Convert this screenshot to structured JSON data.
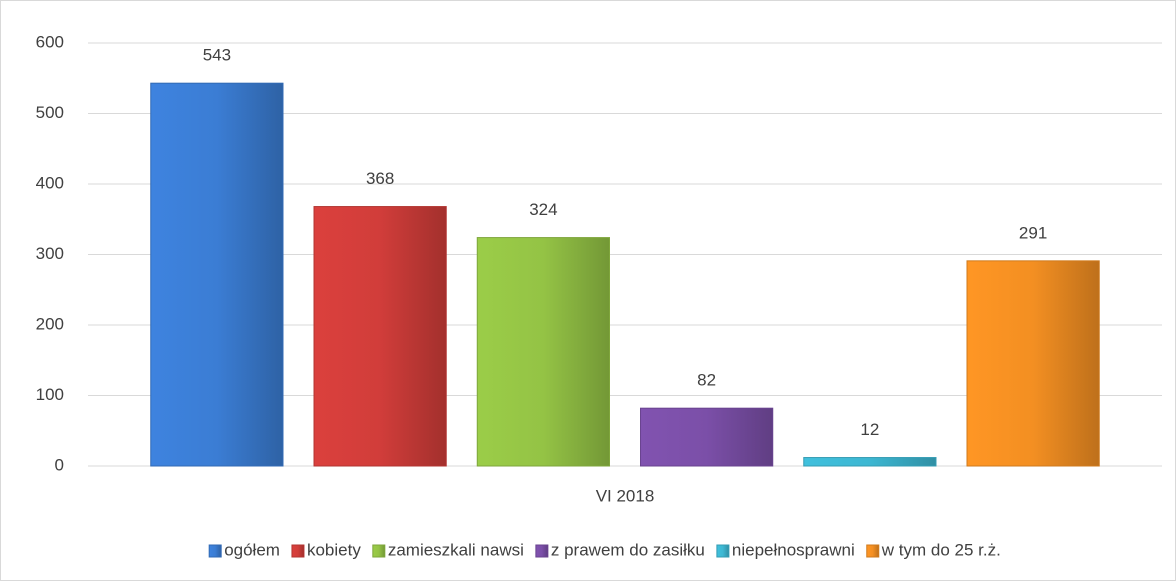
{
  "chart_data": {
    "type": "bar",
    "categories": [
      "VI 2018"
    ],
    "series": [
      {
        "name": "ogółem",
        "color": "#3b7dd4",
        "values": [
          543
        ]
      },
      {
        "name": "kobiety",
        "color": "#d13d3a",
        "values": [
          368
        ]
      },
      {
        "name": "zamieszkali nawsi",
        "color": "#94c345",
        "values": [
          324
        ]
      },
      {
        "name": "z prawem do zasiłku",
        "color": "#7b4fa8",
        "values": [
          82
        ]
      },
      {
        "name": "niepełnosprawni",
        "color": "#3db7d2",
        "values": [
          12
        ]
      },
      {
        "name": "w tym do 25 r.ż.",
        "color": "#f38f22",
        "values": [
          291
        ]
      }
    ],
    "ylim": [
      0,
      600
    ],
    "yticks": [
      0,
      100,
      200,
      300,
      400,
      500,
      600
    ],
    "grid": true,
    "legend": "bottom"
  }
}
